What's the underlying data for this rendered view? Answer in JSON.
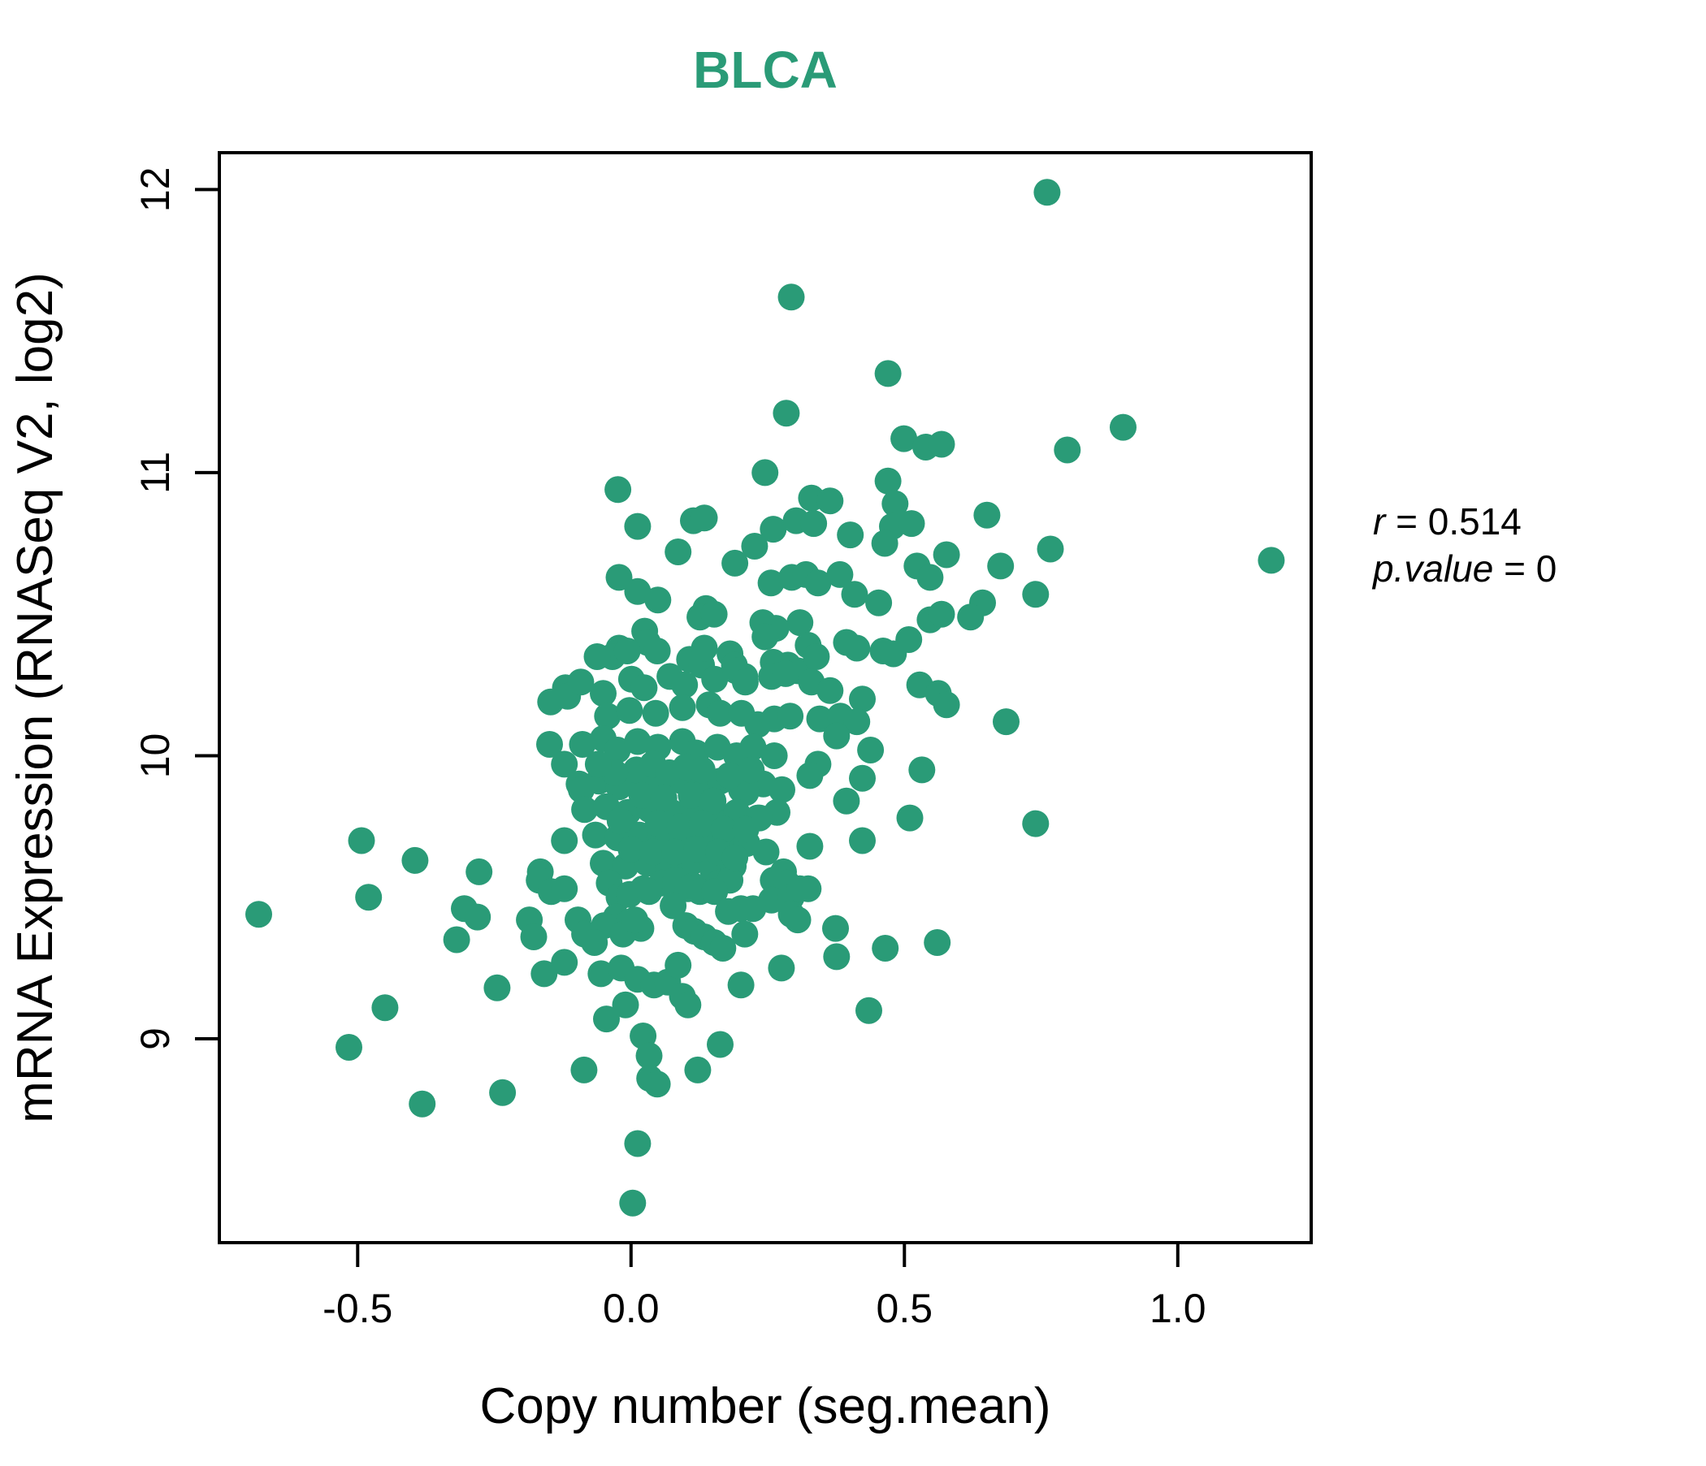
{
  "title": "BLCA",
  "annotation": {
    "r_var": "r",
    "r_rest": " = 0.514",
    "p_var": "p.value",
    "p_rest": " = 0"
  },
  "colors": {
    "accent": "#2a9b77",
    "title_color": "#2a9b77",
    "axis_color": "#000000"
  },
  "chart_data": {
    "type": "scatter",
    "title": "BLCA",
    "xlabel": "Copy number (seg.mean)",
    "ylabel": "mRNA Expression (RNASeq V2, log2)",
    "xlim": [
      -0.753,
      1.244
    ],
    "ylim": [
      8.28,
      12.13
    ],
    "grid": false,
    "legend": "none",
    "point_color": "#2a9b77",
    "point_radius_px": 16.5,
    "correlation": {
      "r": 0.514,
      "p_value": 0
    },
    "x_ticks": {
      "values": [
        -0.5,
        0.0,
        0.5,
        1.0
      ],
      "labels": [
        "-0.5",
        "0.0",
        "0.5",
        "1.0"
      ]
    },
    "y_ticks": {
      "values": [
        9,
        10,
        11,
        12
      ],
      "labels": [
        "9",
        "10",
        "11",
        "12"
      ]
    },
    "points": [
      [
        0.761,
        11.99
      ],
      [
        0.293,
        11.62
      ],
      [
        0.47,
        11.35
      ],
      [
        0.284,
        11.21
      ],
      [
        0.9,
        11.16
      ],
      [
        0.499,
        11.12
      ],
      [
        0.539,
        11.09
      ],
      [
        0.798,
        11.08
      ],
      [
        0.568,
        11.1
      ],
      [
        0.245,
        11.0
      ],
      [
        0.47,
        10.97
      ],
      [
        -0.024,
        10.94
      ],
      [
        0.33,
        10.91
      ],
      [
        0.364,
        10.9
      ],
      [
        0.483,
        10.89
      ],
      [
        0.651,
        10.85
      ],
      [
        0.012,
        10.81
      ],
      [
        0.114,
        10.83
      ],
      [
        0.134,
        10.84
      ],
      [
        0.26,
        10.8
      ],
      [
        0.302,
        10.83
      ],
      [
        0.334,
        10.82
      ],
      [
        0.401,
        10.78
      ],
      [
        0.478,
        10.81
      ],
      [
        0.513,
        10.82
      ],
      [
        0.086,
        10.72
      ],
      [
        0.226,
        10.74
      ],
      [
        0.19,
        10.68
      ],
      [
        0.464,
        10.75
      ],
      [
        0.523,
        10.67
      ],
      [
        0.547,
        10.63
      ],
      [
        -0.022,
        10.63
      ],
      [
        0.012,
        10.58
      ],
      [
        0.049,
        10.55
      ],
      [
        0.256,
        10.61
      ],
      [
        0.294,
        10.63
      ],
      [
        0.32,
        10.64
      ],
      [
        0.342,
        10.61
      ],
      [
        0.382,
        10.64
      ],
      [
        0.409,
        10.57
      ],
      [
        0.453,
        10.54
      ],
      [
        0.577,
        10.71
      ],
      [
        0.767,
        10.73
      ],
      [
        0.676,
        10.67
      ],
      [
        1.171,
        10.69
      ],
      [
        0.74,
        10.57
      ],
      [
        0.643,
        10.54
      ],
      [
        0.621,
        10.49
      ],
      [
        0.137,
        10.52
      ],
      [
        0.126,
        10.49
      ],
      [
        0.152,
        10.5
      ],
      [
        0.241,
        10.47
      ],
      [
        0.265,
        10.45
      ],
      [
        0.309,
        10.47
      ],
      [
        0.245,
        10.42
      ],
      [
        0.025,
        10.44
      ],
      [
        0.03,
        10.4
      ],
      [
        -0.022,
        10.38
      ],
      [
        -0.034,
        10.35
      ],
      [
        -0.062,
        10.35
      ],
      [
        -0.007,
        10.37
      ],
      [
        0.048,
        10.37
      ],
      [
        0.107,
        10.34
      ],
      [
        0.129,
        10.32
      ],
      [
        0.134,
        10.38
      ],
      [
        0.181,
        10.36
      ],
      [
        0.189,
        10.32
      ],
      [
        0.208,
        10.28
      ],
      [
        0.26,
        10.33
      ],
      [
        0.287,
        10.32
      ],
      [
        0.305,
        10.3
      ],
      [
        0.324,
        10.39
      ],
      [
        0.339,
        10.35
      ],
      [
        0.394,
        10.4
      ],
      [
        0.413,
        10.38
      ],
      [
        0.461,
        10.37
      ],
      [
        0.48,
        10.36
      ],
      [
        0.508,
        10.41
      ],
      [
        0.547,
        10.48
      ],
      [
        0.568,
        10.5
      ],
      [
        -0.12,
        10.24
      ],
      [
        -0.116,
        10.21
      ],
      [
        -0.147,
        10.19
      ],
      [
        0.528,
        10.25
      ],
      [
        0.562,
        10.22
      ],
      [
        -0.092,
        10.26
      ],
      [
        -0.051,
        10.22
      ],
      [
        0.001,
        10.27
      ],
      [
        0.024,
        10.24
      ],
      [
        0.071,
        10.28
      ],
      [
        0.098,
        10.25
      ],
      [
        0.153,
        10.27
      ],
      [
        0.192,
        10.3
      ],
      [
        0.209,
        10.26
      ],
      [
        0.257,
        10.28
      ],
      [
        0.283,
        10.29
      ],
      [
        0.33,
        10.26
      ],
      [
        0.364,
        10.23
      ],
      [
        0.423,
        10.2
      ],
      [
        0.577,
        10.18
      ],
      [
        -0.043,
        10.14
      ],
      [
        -0.003,
        10.16
      ],
      [
        0.045,
        10.15
      ],
      [
        0.094,
        10.17
      ],
      [
        0.143,
        10.18
      ],
      [
        0.163,
        10.15
      ],
      [
        0.202,
        10.15
      ],
      [
        0.232,
        10.11
      ],
      [
        0.262,
        10.13
      ],
      [
        0.291,
        10.14
      ],
      [
        0.345,
        10.13
      ],
      [
        0.383,
        10.14
      ],
      [
        0.413,
        10.12
      ],
      [
        0.686,
        10.12
      ],
      [
        -0.149,
        10.04
      ],
      [
        -0.089,
        10.04
      ],
      [
        -0.051,
        10.06
      ],
      [
        -0.025,
        10.02
      ],
      [
        0.012,
        10.05
      ],
      [
        0.049,
        10.03
      ],
      [
        0.094,
        10.05
      ],
      [
        0.119,
        10.01
      ],
      [
        0.158,
        10.03
      ],
      [
        0.193,
        10.0
      ],
      [
        0.223,
        10.03
      ],
      [
        0.262,
        10.0
      ],
      [
        0.376,
        10.07
      ],
      [
        0.438,
        10.02
      ],
      [
        -0.122,
        9.97
      ],
      [
        -0.095,
        9.9
      ],
      [
        -0.059,
        9.91
      ],
      [
        -0.022,
        9.89
      ],
      [
        0.015,
        9.91
      ],
      [
        0.053,
        9.9
      ],
      [
        0.094,
        9.91
      ],
      [
        0.128,
        9.89
      ],
      [
        0.163,
        9.91
      ],
      [
        0.202,
        9.88
      ],
      [
        0.242,
        9.9
      ],
      [
        0.276,
        9.88
      ],
      [
        0.342,
        9.97
      ],
      [
        0.327,
        9.93
      ],
      [
        0.532,
        9.95
      ],
      [
        0.423,
        9.92
      ],
      [
        -0.091,
        9.88
      ],
      [
        0.21,
        9.87
      ],
      [
        -0.085,
        9.81
      ],
      [
        -0.045,
        9.82
      ],
      [
        -0.006,
        9.8
      ],
      [
        0.034,
        9.81
      ],
      [
        0.074,
        9.8
      ],
      [
        0.113,
        9.81
      ],
      [
        0.153,
        9.79
      ],
      [
        0.193,
        9.8
      ],
      [
        0.232,
        9.78
      ],
      [
        0.267,
        9.8
      ],
      [
        0.394,
        9.84
      ],
      [
        0.235,
        9.78
      ],
      [
        0.51,
        9.78
      ],
      [
        0.74,
        9.76
      ],
      [
        -0.065,
        9.72
      ],
      [
        -0.025,
        9.71
      ],
      [
        0.015,
        9.72
      ],
      [
        0.053,
        9.71
      ],
      [
        0.094,
        9.72
      ],
      [
        0.134,
        9.7
      ],
      [
        0.172,
        9.71
      ],
      [
        0.212,
        9.69
      ],
      [
        0.247,
        9.66
      ],
      [
        0.423,
        9.7
      ],
      [
        0.327,
        9.68
      ],
      [
        -0.122,
        9.7
      ],
      [
        -0.493,
        9.7
      ],
      [
        -0.051,
        9.62
      ],
      [
        -0.01,
        9.61
      ],
      [
        0.03,
        9.62
      ],
      [
        0.068,
        9.61
      ],
      [
        0.108,
        9.62
      ],
      [
        0.149,
        9.6
      ],
      [
        0.187,
        9.61
      ],
      [
        -0.395,
        9.63
      ],
      [
        -0.278,
        9.59
      ],
      [
        -0.166,
        9.59
      ],
      [
        0.279,
        9.59
      ],
      [
        -0.168,
        9.56
      ],
      [
        -0.04,
        9.55
      ],
      [
        0.022,
        9.53
      ],
      [
        0.056,
        9.55
      ],
      [
        0.082,
        9.56
      ],
      [
        0.114,
        9.54
      ],
      [
        0.16,
        9.55
      ],
      [
        0.181,
        9.56
      ],
      [
        0.26,
        9.56
      ],
      [
        0.285,
        9.55
      ],
      [
        0.324,
        9.53
      ],
      [
        -0.022,
        9.5
      ],
      [
        -0.003,
        9.51
      ],
      [
        0.033,
        9.52
      ],
      [
        0.104,
        9.53
      ],
      [
        0.126,
        9.52
      ],
      [
        0.153,
        9.52
      ],
      [
        0.077,
        9.47
      ],
      [
        0.257,
        9.49
      ],
      [
        0.293,
        9.5
      ],
      [
        0.309,
        9.53
      ],
      [
        -0.48,
        9.5
      ],
      [
        -0.681,
        9.44
      ],
      [
        -0.305,
        9.46
      ],
      [
        -0.281,
        9.43
      ],
      [
        -0.146,
        9.52
      ],
      [
        -0.122,
        9.53
      ],
      [
        0.178,
        9.45
      ],
      [
        0.201,
        9.46
      ],
      [
        0.223,
        9.46
      ],
      [
        -0.027,
        9.43
      ],
      [
        -0.004,
        9.41
      ],
      [
        0.018,
        9.39
      ],
      [
        -0.049,
        9.4
      ],
      [
        -0.015,
        9.37
      ],
      [
        0.007,
        9.42
      ],
      [
        0.1,
        9.4
      ],
      [
        0.116,
        9.38
      ],
      [
        0.134,
        9.36
      ],
      [
        0.152,
        9.34
      ],
      [
        0.168,
        9.32
      ],
      [
        0.208,
        9.37
      ],
      [
        0.293,
        9.44
      ],
      [
        0.305,
        9.42
      ],
      [
        0.374,
        9.39
      ],
      [
        -0.186,
        9.42
      ],
      [
        -0.178,
        9.36
      ],
      [
        -0.097,
        9.42
      ],
      [
        -0.085,
        9.37
      ],
      [
        -0.319,
        9.35
      ],
      [
        -0.067,
        9.34
      ],
      [
        0.56,
        9.34
      ],
      [
        0.465,
        9.32
      ],
      [
        0.376,
        9.29
      ],
      [
        -0.122,
        9.27
      ],
      [
        -0.159,
        9.23
      ],
      [
        -0.245,
        9.18
      ],
      [
        0.201,
        9.19
      ],
      [
        0.275,
        9.25
      ],
      [
        -0.055,
        9.23
      ],
      [
        -0.018,
        9.25
      ],
      [
        0.012,
        9.21
      ],
      [
        0.042,
        9.19
      ],
      [
        0.067,
        9.2
      ],
      [
        0.086,
        9.26
      ],
      [
        0.094,
        9.15
      ],
      [
        0.104,
        9.12
      ],
      [
        -0.01,
        9.12
      ],
      [
        -0.045,
        9.07
      ],
      [
        -0.45,
        9.11
      ],
      [
        0.435,
        9.1
      ],
      [
        0.022,
        9.01
      ],
      [
        -0.516,
        8.97
      ],
      [
        0.033,
        8.94
      ],
      [
        0.163,
        8.98
      ],
      [
        0.034,
        8.86
      ],
      [
        0.048,
        8.84
      ],
      [
        0.122,
        8.89
      ],
      [
        -0.086,
        8.89
      ],
      [
        -0.382,
        8.77
      ],
      [
        -0.235,
        8.81
      ],
      [
        0.012,
        8.63
      ],
      [
        0.003,
        8.42
      ],
      [
        0.01,
        9.95
      ],
      [
        0.04,
        9.97
      ],
      [
        0.07,
        9.94
      ],
      [
        0.1,
        9.96
      ],
      [
        0.13,
        9.95
      ],
      [
        0.02,
        9.86
      ],
      [
        0.06,
        9.85
      ],
      [
        0.11,
        9.86
      ],
      [
        0.15,
        9.84
      ],
      [
        0.18,
        9.93
      ],
      [
        0.22,
        9.95
      ],
      [
        0.05,
        9.76
      ],
      [
        0.09,
        9.75
      ],
      [
        0.13,
        9.76
      ],
      [
        0.17,
        9.74
      ],
      [
        0.21,
        9.74
      ],
      [
        0.0,
        9.67
      ],
      [
        0.04,
        9.66
      ],
      [
        0.08,
        9.66
      ],
      [
        0.12,
        9.67
      ],
      [
        0.16,
        9.66
      ],
      [
        0.19,
        9.64
      ],
      [
        -0.03,
        9.94
      ],
      [
        -0.06,
        9.97
      ],
      [
        -0.02,
        9.77
      ]
    ]
  }
}
